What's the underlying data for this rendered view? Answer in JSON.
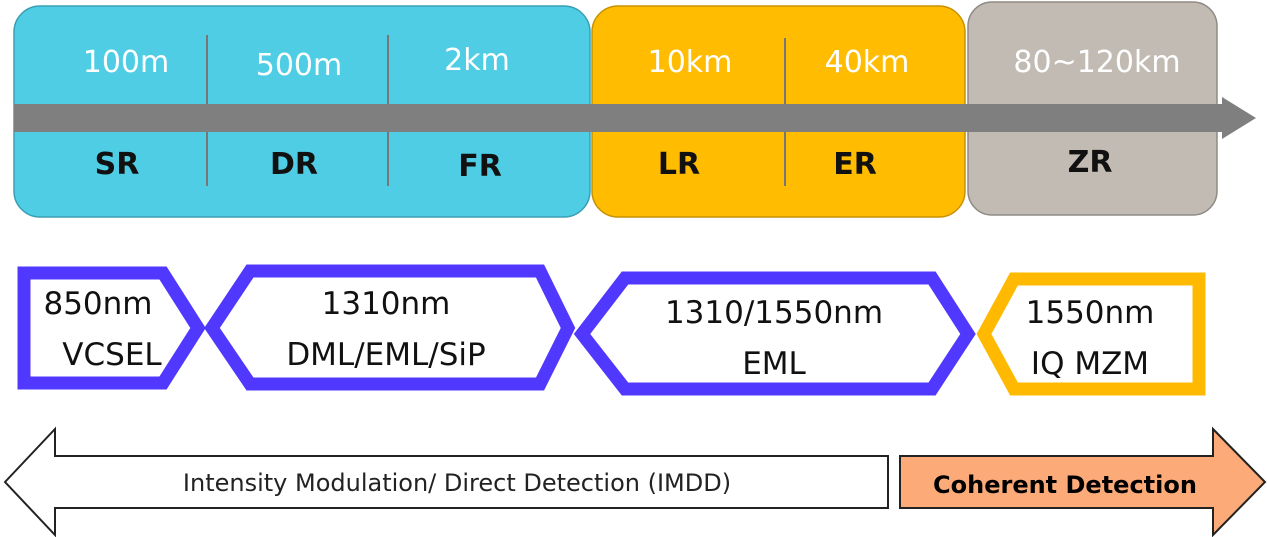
{
  "colors": {
    "short_reach": "#4ECDE4",
    "long_reach": "#FFBC00",
    "coherent_reach": "#C1BBB4",
    "axis_arrow": "#7F7F7F",
    "imdd_source_outline": "#5038FF",
    "coherent_source_outline": "#FFB900",
    "coherent_detection_fill": "#FBAA78"
  },
  "reach_segments": [
    {
      "distance": "100m",
      "code": "SR"
    },
    {
      "distance": "500m",
      "code": "DR"
    },
    {
      "distance": "2km",
      "code": "FR"
    },
    {
      "distance": "10km",
      "code": "LR"
    },
    {
      "distance": "40km",
      "code": "ER"
    },
    {
      "distance": "80~120km",
      "code": "ZR"
    }
  ],
  "sources": [
    {
      "line1": "850nm",
      "line2": "VCSEL"
    },
    {
      "line1": "1310nm",
      "line2": "DML/EML/SiP"
    },
    {
      "line1": "1310/1550nm",
      "line2": "EML"
    },
    {
      "line1": "1550nm",
      "line2": "IQ MZM"
    }
  ],
  "detection": {
    "imdd": "Intensity Modulation/ Direct Detection (IMDD)",
    "coherent": "Coherent Detection"
  }
}
